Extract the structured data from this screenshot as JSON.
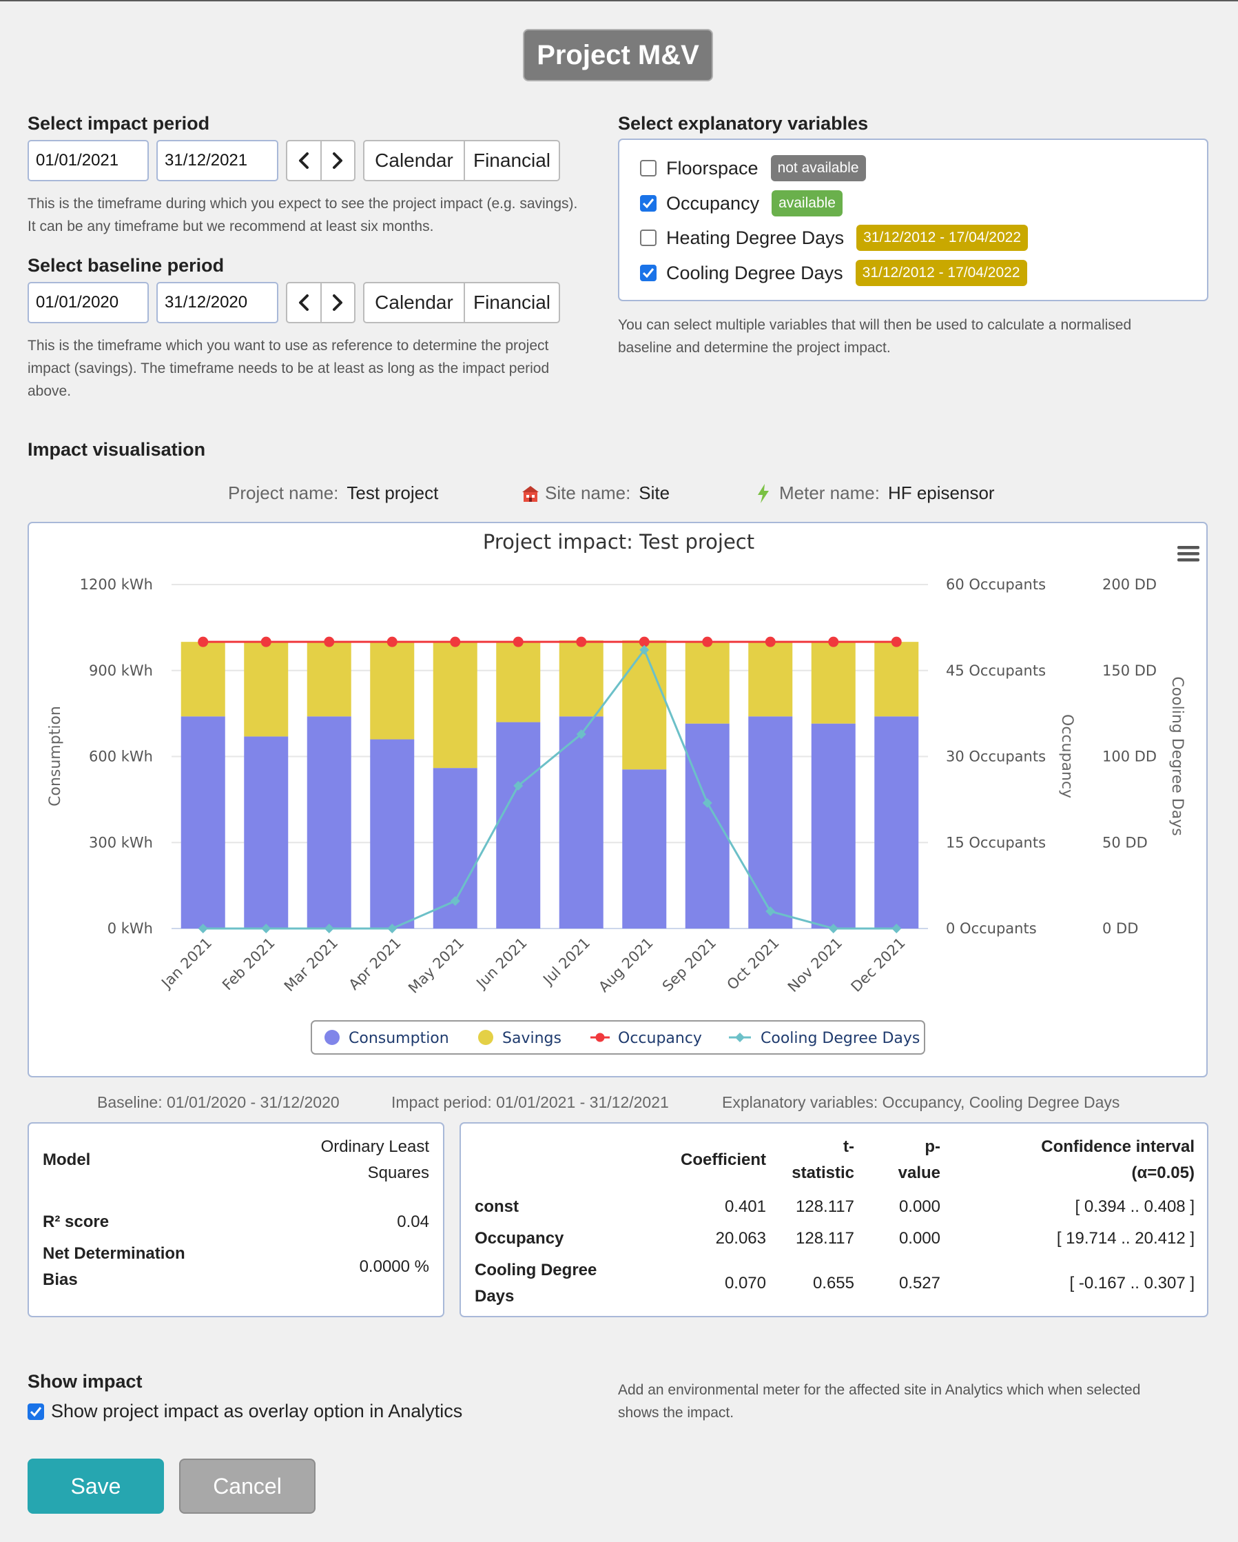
{
  "header": {
    "title": "Project M&V"
  },
  "impact_period": {
    "label": "Select impact period",
    "start": "01/01/2021",
    "end": "31/12/2021",
    "calendar_label": "Calendar",
    "financial_label": "Financial",
    "help_line1": "This is the timeframe during which you expect to see the project impact (e.g. savings).",
    "help_line2": "It can be any timeframe but we recommend at least six months."
  },
  "baseline_period": {
    "label": "Select baseline period",
    "start": "01/01/2020",
    "end": "31/12/2020",
    "calendar_label": "Calendar",
    "financial_label": "Financial",
    "help_line1": "This is the timeframe which you want to use as reference to determine the project",
    "help_line2": "impact (savings). The timeframe needs to be at least as long as the impact period",
    "help_line3": "above."
  },
  "explanatory": {
    "label": "Select explanatory variables",
    "variables": [
      {
        "name": "Floorspace",
        "checked": false,
        "badge": "not available",
        "badge_color": "#7b7b7b"
      },
      {
        "name": "Occupancy",
        "checked": true,
        "badge": "available",
        "badge_color": "#6ab04c"
      },
      {
        "name": "Heating Degree Days",
        "checked": false,
        "badge": "31/12/2012 - 17/04/2022",
        "badge_color": "#c9a800"
      },
      {
        "name": "Cooling Degree Days",
        "checked": true,
        "badge": "31/12/2012 - 17/04/2022",
        "badge_color": "#c9a800"
      }
    ],
    "help_line1": "You can select multiple variables that will then be used to calculate a normalised",
    "help_line2": "baseline and determine the project impact."
  },
  "visualisation": {
    "label": "Impact visualisation",
    "project_label": "Project name:",
    "project_value": "Test project",
    "site_label": "Site name:",
    "site_value": "Site",
    "meter_label": "Meter name:",
    "meter_value": "HF episensor"
  },
  "chart_data": {
    "type": "bar",
    "title": "Project impact: Test project",
    "categories": [
      "Jan 2021",
      "Feb 2021",
      "Mar 2021",
      "Apr 2021",
      "May 2021",
      "Jun 2021",
      "Jul 2021",
      "Aug 2021",
      "Sep 2021",
      "Oct 2021",
      "Nov 2021",
      "Dec 2021"
    ],
    "stacked": true,
    "series": [
      {
        "name": "Consumption",
        "type": "bar",
        "axis": "Consumption",
        "color": "#8085e9",
        "values": [
          740,
          670,
          740,
          660,
          560,
          720,
          740,
          555,
          715,
          740,
          715,
          740
        ]
      },
      {
        "name": "Savings",
        "type": "bar",
        "axis": "Consumption",
        "color": "#e4d046",
        "values": [
          260,
          330,
          260,
          340,
          440,
          280,
          265,
          450,
          285,
          260,
          285,
          260
        ]
      },
      {
        "name": "Occupancy",
        "type": "line",
        "axis": "Occupancy",
        "color": "#f0393d",
        "values": [
          50,
          50,
          50,
          50,
          50,
          50,
          50,
          50,
          50,
          50,
          50,
          50
        ]
      },
      {
        "name": "Cooling Degree Days",
        "type": "line",
        "axis": "Cooling Degree Days",
        "color": "#6cc0c8",
        "values": [
          0,
          0,
          0,
          0,
          16,
          83,
          113,
          162,
          73,
          10,
          0,
          0
        ]
      }
    ],
    "axes": [
      {
        "label": "Consumption",
        "unit": "kWh",
        "range": [
          0,
          1200
        ],
        "ticks": [
          "1200 kWh",
          "900 kWh",
          "600 kWh",
          "300 kWh",
          "0 kWh"
        ]
      },
      {
        "label": "Occupancy",
        "unit": "Occupants",
        "range": [
          0,
          60
        ],
        "ticks": [
          "60 Occupants",
          "45 Occupants",
          "30 Occupants",
          "15 Occupants",
          "0 Occupants"
        ]
      },
      {
        "label": "Cooling Degree Days",
        "unit": "DD",
        "range": [
          0,
          200
        ],
        "ticks": [
          "200 DD",
          "150 DD",
          "100 DD",
          "50 DD",
          "0 DD"
        ]
      }
    ],
    "legend_position": "bottom-center",
    "grid": true
  },
  "summary": {
    "baseline": "Baseline: 01/01/2020 - 31/12/2020",
    "impact": "Impact period: 01/01/2021 - 31/12/2021",
    "variables": "Explanatory variables: Occupancy, Cooling Degree Days"
  },
  "model": {
    "model_label": "Model",
    "model_value_line1": "Ordinary Least",
    "model_value_line2": "Squares",
    "r2_label": "R² score",
    "r2_value": "0.04",
    "ndb_label_line1": "Net Determination",
    "ndb_label_line2": "Bias",
    "ndb_value": "0.0000 %"
  },
  "coefficients": {
    "headers": {
      "coefficient": "Coefficient",
      "t_line1": "t-",
      "t_line2": "statistic",
      "p_line1": "p-",
      "p_line2": "value",
      "ci_line1": "Confidence interval",
      "ci_line2": "(α=0.05)"
    },
    "rows": [
      {
        "name": "const",
        "coefficient": "0.401",
        "t": "128.117",
        "p": "0.000",
        "ci": "[ 0.394 .. 0.408 ]"
      },
      {
        "name": "Occupancy",
        "coefficient": "20.063",
        "t": "128.117",
        "p": "0.000",
        "ci": "[ 19.714 .. 20.412 ]"
      },
      {
        "name_line1": "Cooling Degree",
        "name_line2": "Days",
        "coefficient": "0.070",
        "t": "0.655",
        "p": "0.527",
        "ci": "[ -0.167 .. 0.307 ]"
      }
    ]
  },
  "show_impact": {
    "label": "Show impact",
    "checkbox_label": "Show project impact as overlay option in Analytics",
    "checked": true,
    "help_line1": "Add an environmental meter for the affected site in Analytics which when selected",
    "help_line2": "shows the impact."
  },
  "buttons": {
    "save": "Save",
    "cancel": "Cancel"
  },
  "colors": {
    "accent": "#26a6b0",
    "border": "#a8b8d8"
  }
}
